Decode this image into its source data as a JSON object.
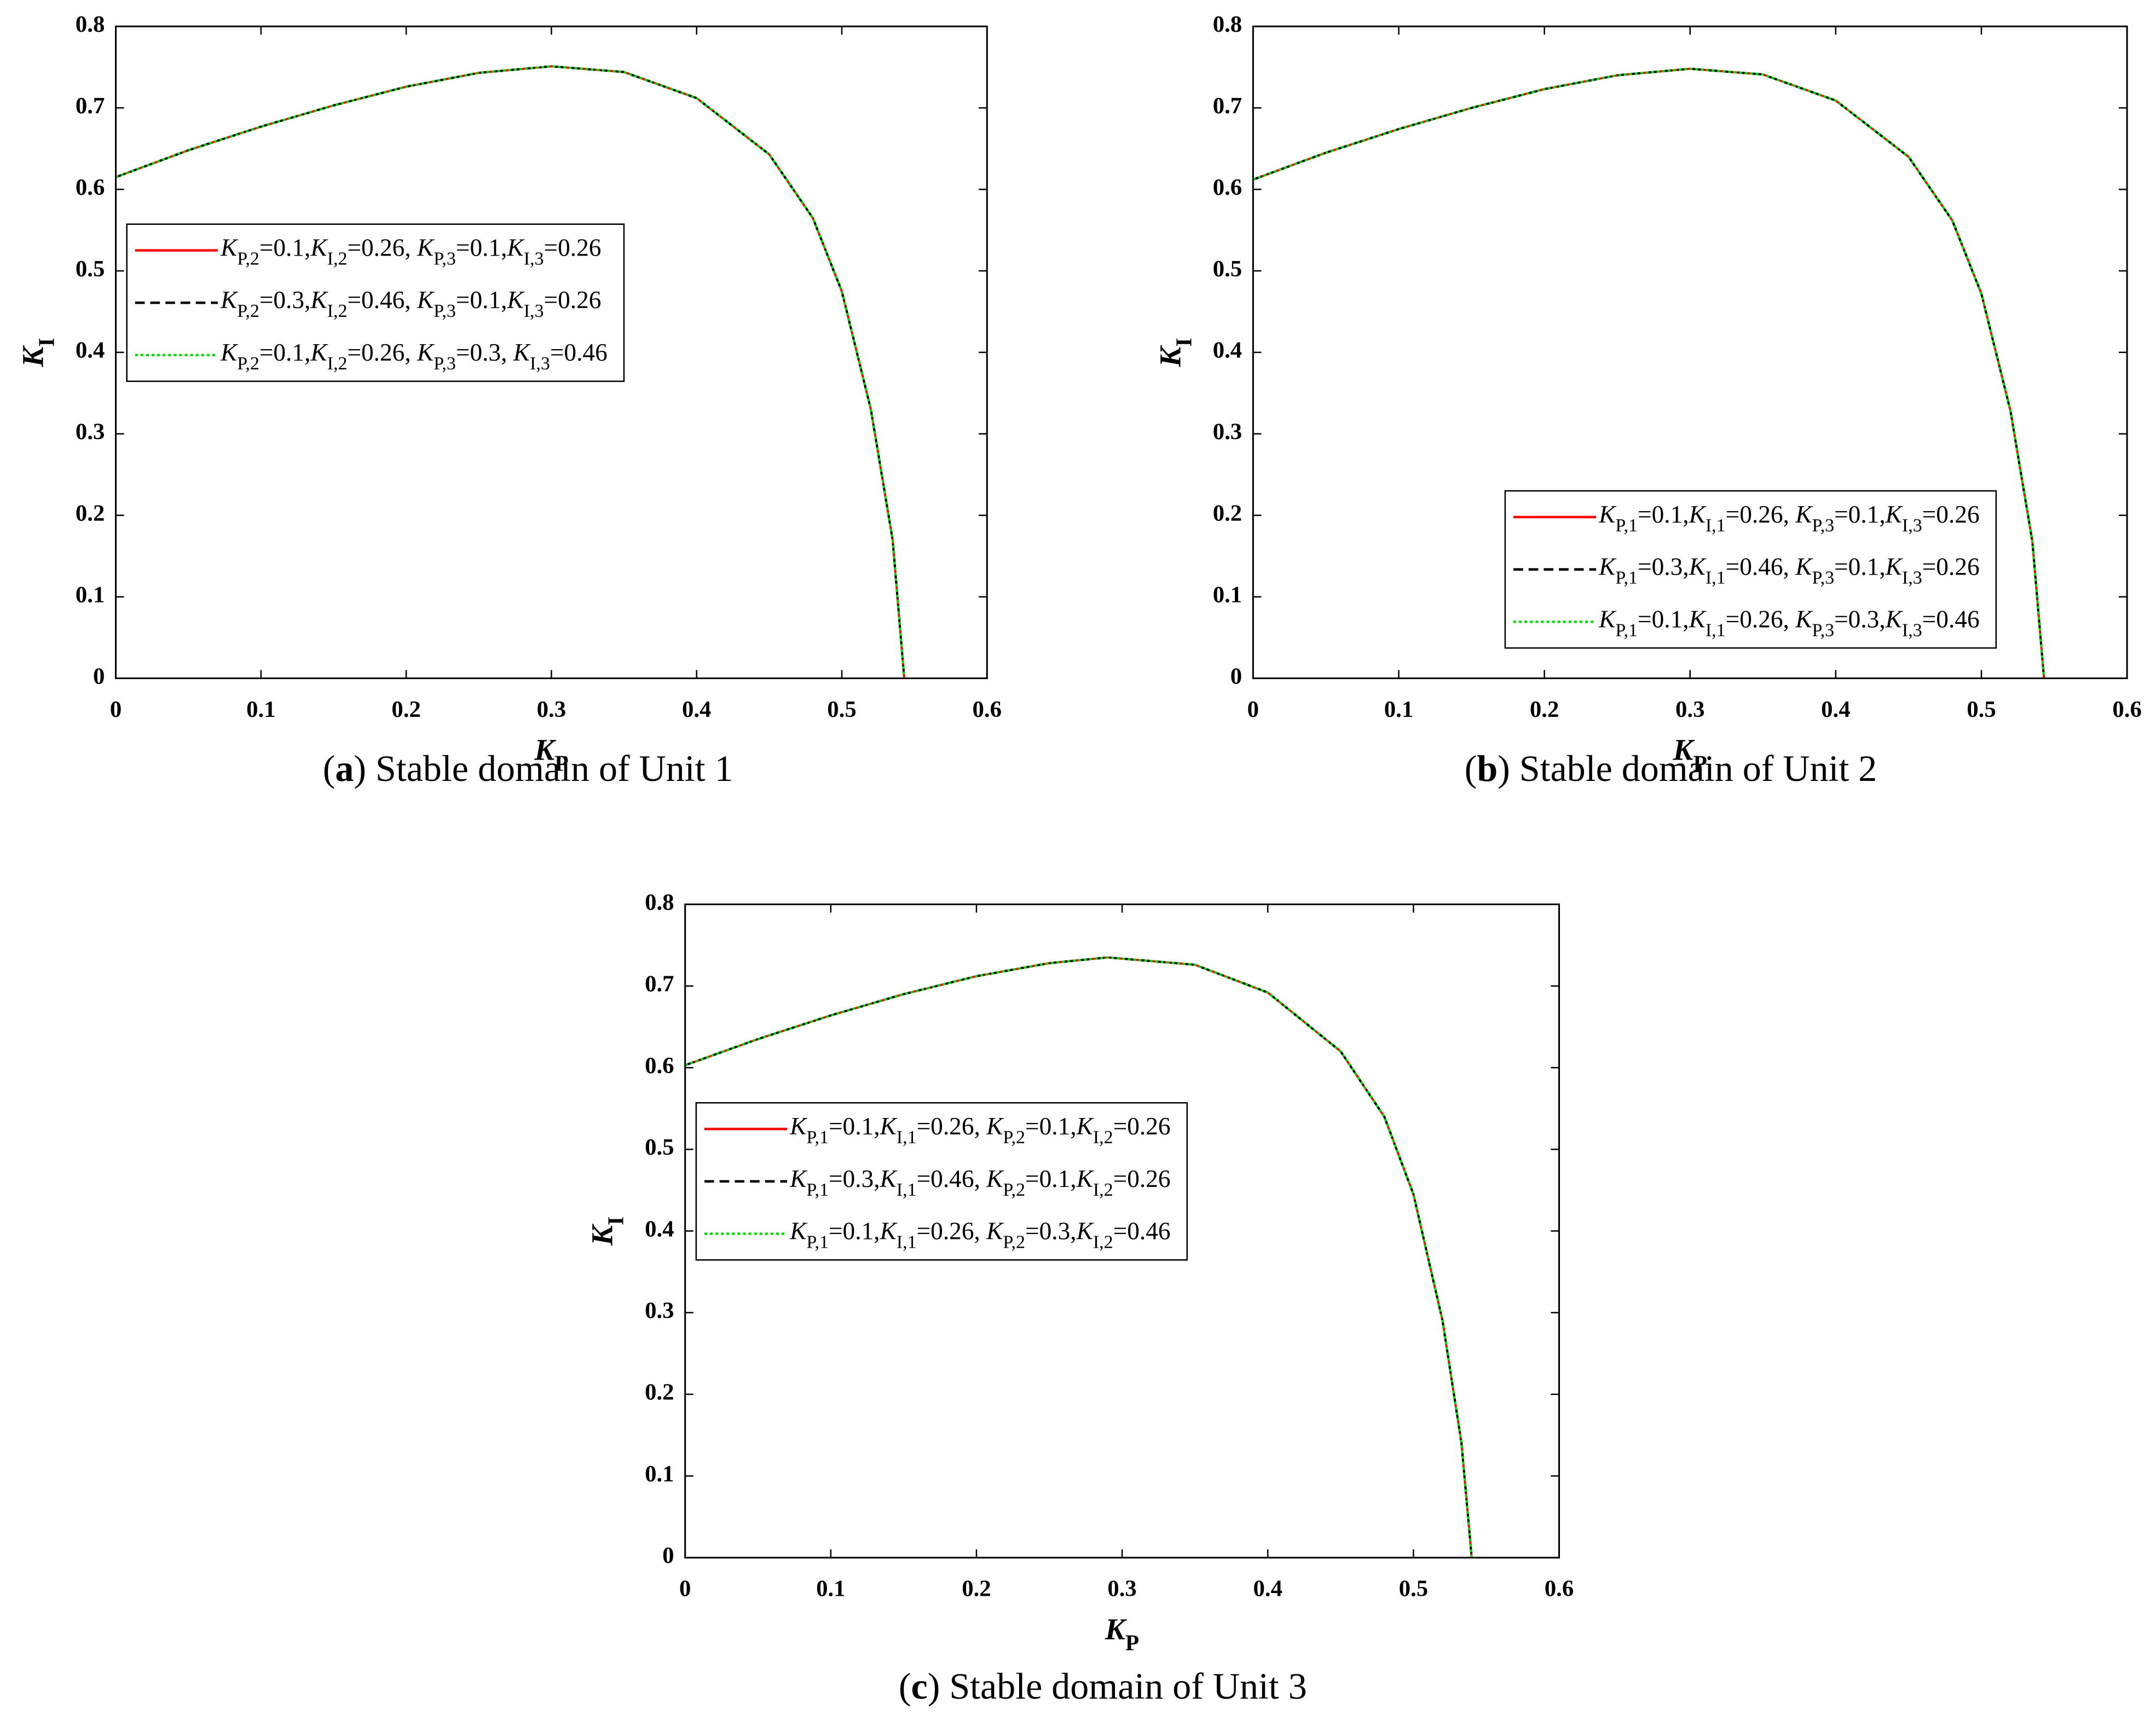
{
  "chart_data": [
    {
      "type": "line",
      "caption": "(a) Stable domain of Unit 1",
      "xlabel": "KP",
      "ylabel": "KI",
      "x": [
        0,
        0.05,
        0.1,
        0.15,
        0.2,
        0.25,
        0.3,
        0.35,
        0.4,
        0.45,
        0.48,
        0.5,
        0.52,
        0.535,
        0.543
      ],
      "series": [
        {
          "name": "KP,2=0.1,KI,2=0.26, KP,3=0.1,KI,3=0.26",
          "color": "#ff0000",
          "linestyle": "solid",
          "values": [
            0.615,
            0.648,
            0.677,
            0.703,
            0.726,
            0.743,
            0.751,
            0.744,
            0.712,
            0.643,
            0.565,
            0.475,
            0.33,
            0.17,
            0
          ]
        },
        {
          "name": "KP,2=0.3,KI,2=0.46, KP,3=0.1,KI,3=0.26",
          "color": "#000000",
          "linestyle": "dashed",
          "values": [
            0.615,
            0.648,
            0.677,
            0.703,
            0.726,
            0.743,
            0.751,
            0.744,
            0.712,
            0.643,
            0.565,
            0.475,
            0.33,
            0.17,
            0
          ]
        },
        {
          "name": "KP,2=0.1,KI,2=0.26, KP,3=0.3, KI,3=0.46",
          "color": "#00dd00",
          "linestyle": "dotted",
          "values": [
            0.615,
            0.648,
            0.677,
            0.703,
            0.726,
            0.743,
            0.751,
            0.744,
            0.712,
            0.643,
            0.565,
            0.475,
            0.33,
            0.17,
            0
          ]
        }
      ],
      "xlim": [
        0,
        0.6
      ],
      "xticks": [
        0,
        0.1,
        0.2,
        0.3,
        0.4,
        0.5,
        0.6
      ],
      "ylim": [
        0,
        0.8
      ],
      "yticks": [
        0,
        0.1,
        0.2,
        0.3,
        0.4,
        0.5,
        0.6,
        0.7,
        0.8
      ],
      "legend": "west"
    },
    {
      "type": "line",
      "caption": "(b) Stable domain of Unit 2",
      "xlabel": "KP",
      "ylabel": "KI",
      "x": [
        0,
        0.05,
        0.1,
        0.15,
        0.2,
        0.25,
        0.3,
        0.35,
        0.4,
        0.45,
        0.48,
        0.5,
        0.52,
        0.535,
        0.543
      ],
      "series": [
        {
          "name": "KP,1=0.1,KI,1=0.26, KP,3=0.1,KI,3=0.26",
          "color": "#ff0000",
          "linestyle": "solid",
          "values": [
            0.612,
            0.645,
            0.674,
            0.7,
            0.723,
            0.74,
            0.748,
            0.741,
            0.709,
            0.64,
            0.562,
            0.472,
            0.328,
            0.168,
            0
          ]
        },
        {
          "name": "KP,1=0.3,KI,1=0.46, KP,3=0.1,KI,3=0.26",
          "color": "#000000",
          "linestyle": "dashed",
          "values": [
            0.612,
            0.645,
            0.674,
            0.7,
            0.723,
            0.74,
            0.748,
            0.741,
            0.709,
            0.64,
            0.562,
            0.472,
            0.328,
            0.168,
            0
          ]
        },
        {
          "name": "KP,1=0.1,KI,1=0.26, KP,3=0.3,KI,3=0.46",
          "color": "#00dd00",
          "linestyle": "dotted",
          "values": [
            0.612,
            0.645,
            0.674,
            0.7,
            0.723,
            0.74,
            0.748,
            0.741,
            0.709,
            0.64,
            0.562,
            0.472,
            0.328,
            0.168,
            0
          ]
        }
      ],
      "xlim": [
        0,
        0.6
      ],
      "xticks": [
        0,
        0.1,
        0.2,
        0.3,
        0.4,
        0.5,
        0.6
      ],
      "ylim": [
        0,
        0.8
      ],
      "yticks": [
        0,
        0.1,
        0.2,
        0.3,
        0.4,
        0.5,
        0.6,
        0.7,
        0.8
      ],
      "legend": "southeast"
    },
    {
      "type": "line",
      "caption": "(c) Stable domain of Unit 3",
      "xlabel": "KP",
      "ylabel": "KI",
      "x": [
        0,
        0.05,
        0.1,
        0.15,
        0.2,
        0.25,
        0.29,
        0.35,
        0.4,
        0.45,
        0.48,
        0.5,
        0.52,
        0.533,
        0.54
      ],
      "series": [
        {
          "name": "KP,1=0.1,KI,1=0.26, KP,2=0.1,KI,2=0.26",
          "color": "#ff0000",
          "linestyle": "solid",
          "values": [
            0.603,
            0.635,
            0.664,
            0.69,
            0.712,
            0.728,
            0.735,
            0.726,
            0.692,
            0.62,
            0.54,
            0.445,
            0.29,
            0.14,
            0
          ]
        },
        {
          "name": "KP,1=0.3,KI,1=0.46, KP,2=0.1,KI,2=0.26",
          "color": "#000000",
          "linestyle": "dashed",
          "values": [
            0.603,
            0.635,
            0.664,
            0.69,
            0.712,
            0.728,
            0.735,
            0.726,
            0.692,
            0.62,
            0.54,
            0.445,
            0.29,
            0.14,
            0
          ]
        },
        {
          "name": "KP,1=0.1,KI,1=0.26, KP,2=0.3,KI,2=0.46",
          "color": "#00dd00",
          "linestyle": "dotted",
          "values": [
            0.603,
            0.635,
            0.664,
            0.69,
            0.712,
            0.728,
            0.735,
            0.726,
            0.692,
            0.62,
            0.54,
            0.445,
            0.29,
            0.14,
            0
          ]
        }
      ],
      "xlim": [
        0,
        0.6
      ],
      "xticks": [
        0,
        0.1,
        0.2,
        0.3,
        0.4,
        0.5,
        0.6
      ],
      "ylim": [
        0,
        0.8
      ],
      "yticks": [
        0,
        0.1,
        0.2,
        0.3,
        0.4,
        0.5,
        0.6,
        0.7,
        0.8
      ],
      "legend": "west"
    }
  ]
}
